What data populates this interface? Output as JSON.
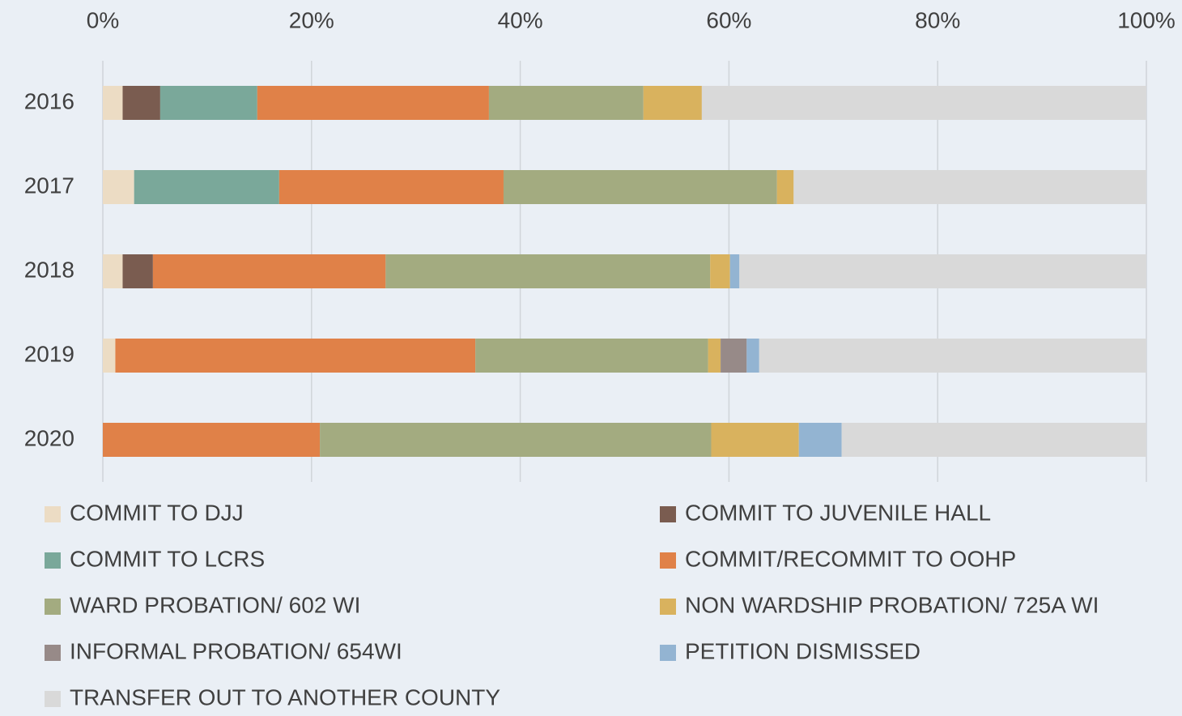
{
  "chart_data": {
    "type": "stacked_bar_horizontal",
    "categories": [
      "2016",
      "2017",
      "2018",
      "2019",
      "2020"
    ],
    "series": [
      {
        "name": "COMMIT TO DJJ",
        "color": "#ecdcc4",
        "values": [
          1.9,
          3.0,
          1.9,
          1.2,
          0
        ]
      },
      {
        "name": "COMMIT TO JUVENILE HALL",
        "color": "#7a5c50",
        "values": [
          3.6,
          0,
          2.9,
          0,
          0
        ]
      },
      {
        "name": "COMMIT TO LCRS",
        "color": "#7aa89a",
        "values": [
          9.3,
          13.9,
          0,
          0,
          0
        ]
      },
      {
        "name": "COMMIT/RECOMMIT TO OOHP",
        "color": "#e08148",
        "values": [
          22.2,
          21.5,
          22.3,
          34.5,
          20.8
        ]
      },
      {
        "name": "WARD PROBATION/ 602 WI",
        "color": "#a3ab80",
        "values": [
          14.8,
          26.2,
          31.1,
          22.3,
          37.5
        ]
      },
      {
        "name": "NON WARDSHIP PROBATION/ 725A WI",
        "color": "#d9b25e",
        "values": [
          5.6,
          1.6,
          1.9,
          1.2,
          8.4
        ]
      },
      {
        "name": "INFORMAL PROBATION/ 654WI",
        "color": "#978a88",
        "values": [
          0,
          0,
          0,
          2.5,
          0
        ]
      },
      {
        "name": "PETITION DISMISSED",
        "color": "#93b4d2",
        "values": [
          0,
          0,
          0.9,
          1.2,
          4.1
        ]
      },
      {
        "name": "TRANSFER OUT TO ANOTHER COUNTY",
        "color": "#d9d9d9",
        "values": [
          42.6,
          33.8,
          39.0,
          37.1,
          29.2
        ]
      }
    ],
    "xlim": [
      0,
      100
    ],
    "xticks": [
      {
        "value": 0,
        "label": "0%"
      },
      {
        "value": 20,
        "label": "20%"
      },
      {
        "value": 40,
        "label": "40%"
      },
      {
        "value": 60,
        "label": "60%"
      },
      {
        "value": 80,
        "label": "80%"
      },
      {
        "value": 100,
        "label": "100%"
      }
    ],
    "grid": true,
    "legend": "bottom"
  }
}
